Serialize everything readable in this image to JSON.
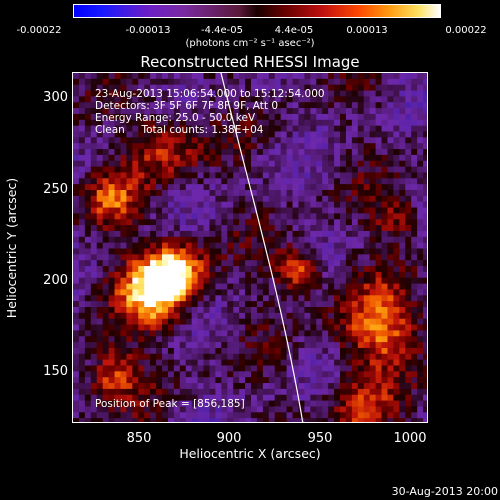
{
  "colorbar": {
    "ticks": [
      "-0.00022",
      "-0.00013",
      "-4.4e-05",
      "4.4e-05",
      "0.00013",
      "0.00022"
    ],
    "units": "(photons cm⁻² s⁻¹ asec⁻²)"
  },
  "title": "Reconstructed RHESSI Image",
  "info": {
    "time_range": "23-Aug-2013 15:06:54.000 to 15:12:54.000",
    "detectors": "Detectors: 3F 5F 6F 7F 8F 9F, Att 0",
    "energy": "Energy Range: 25.0 - 50.0 keV",
    "clean": "Clean     Total counts: 1.38E+04",
    "peak": "Position of Peak = [856,185]"
  },
  "axes": {
    "xlabel": "Heliocentric X (arcsec)",
    "ylabel": "Heliocentric Y (arcsec)",
    "xticks": [
      "850",
      "900",
      "950",
      "1000"
    ],
    "yticks": [
      "300",
      "250",
      "200",
      "150"
    ]
  },
  "timestamp": "30-Aug-2013 20:00"
}
